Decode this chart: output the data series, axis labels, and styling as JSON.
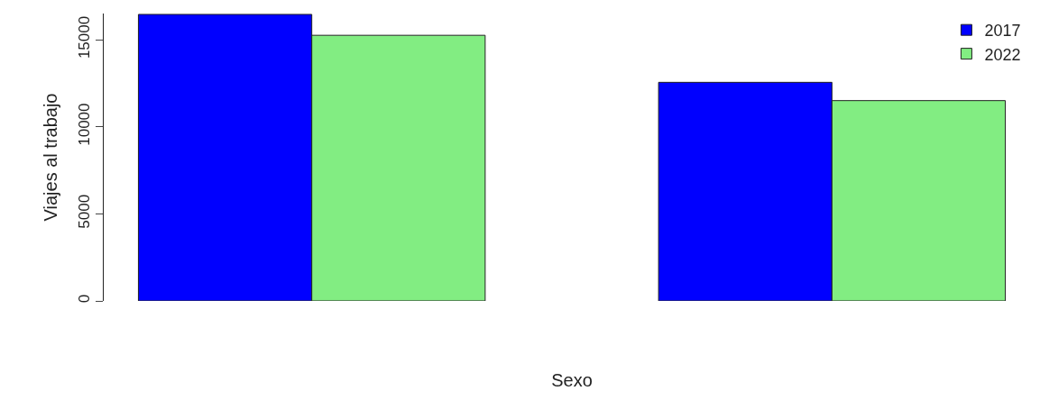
{
  "chart_data": {
    "type": "bar",
    "xlabel": "Sexo",
    "ylabel": "Viajes al trabajo",
    "categories": [
      null,
      null
    ],
    "series": [
      {
        "name": "2017",
        "color": "#0000ff",
        "values": [
          16450,
          12550
        ]
      },
      {
        "name": "2022",
        "color": "#82ed82",
        "values": [
          15250,
          11500
        ]
      }
    ],
    "ylim": [
      0,
      16500
    ],
    "yticks": [
      0,
      5000,
      10000,
      15000
    ],
    "legend": "top right"
  }
}
